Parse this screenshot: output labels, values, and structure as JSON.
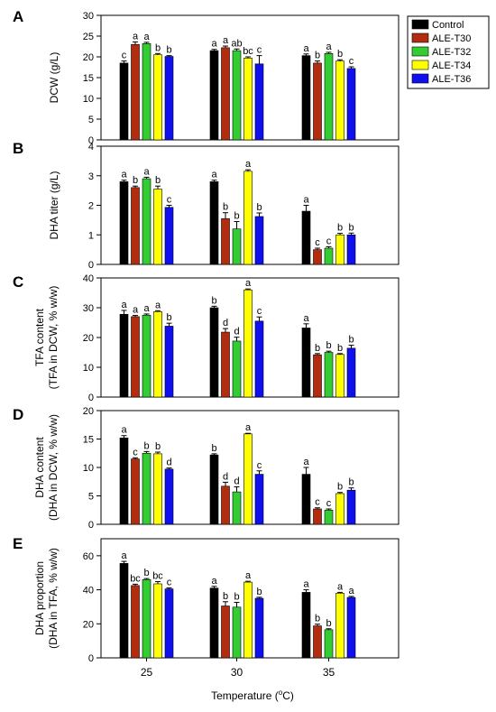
{
  "figure": {
    "xlabel": "Temperature (°C)",
    "xlabel_main": "Temperature (",
    "xlabel_deg": "o",
    "xlabel_unit": "C)",
    "categories": [
      "25",
      "30",
      "35"
    ]
  },
  "legend": {
    "entries": [
      {
        "name": "Control",
        "color": "#000000"
      },
      {
        "name": "ALE-T30",
        "color": "#b22d10"
      },
      {
        "name": "ALE-T32",
        "color": "#33cc33"
      },
      {
        "name": "ALE-T34",
        "color": "#ffff00"
      },
      {
        "name": "ALE-T36",
        "color": "#1010ee"
      }
    ]
  },
  "chart_data": [
    {
      "type": "bar",
      "panel": "A",
      "ylabel": [
        "DCW (g/L)"
      ],
      "ylim": [
        0,
        30
      ],
      "yticks": [
        0,
        5,
        10,
        15,
        20,
        25,
        30
      ],
      "categories": [
        "25",
        "30",
        "35"
      ],
      "series": [
        {
          "name": "Control",
          "values": [
            18.5,
            21.5,
            20.3
          ],
          "errors": [
            0.5,
            0.3,
            0.4
          ],
          "letters": [
            "c",
            "a",
            "a"
          ]
        },
        {
          "name": "ALE-T30",
          "values": [
            23.0,
            22.2,
            18.5
          ],
          "errors": [
            0.6,
            0.4,
            0.5
          ],
          "letters": [
            "a",
            "a",
            "b"
          ]
        },
        {
          "name": "ALE-T32",
          "values": [
            23.2,
            21.5,
            20.8
          ],
          "errors": [
            0.3,
            0.4,
            0.3
          ],
          "letters": [
            "a",
            "ab",
            "a"
          ]
        },
        {
          "name": "ALE-T34",
          "values": [
            20.5,
            19.7,
            19.0
          ],
          "errors": [
            0.3,
            0.3,
            0.3
          ],
          "letters": [
            "b",
            "bc",
            "b"
          ]
        },
        {
          "name": "ALE-T36",
          "values": [
            20.1,
            18.3,
            17.2
          ],
          "errors": [
            0.2,
            2.0,
            0.4
          ],
          "letters": [
            "b",
            "c",
            "c"
          ]
        }
      ]
    },
    {
      "type": "bar",
      "panel": "B",
      "ylabel": [
        "DHA titer (g/L)"
      ],
      "ylim": [
        0,
        4
      ],
      "yticks": [
        0,
        1,
        2,
        3,
        4
      ],
      "categories": [
        "25",
        "30",
        "35"
      ],
      "series": [
        {
          "name": "Control",
          "values": [
            2.8,
            2.8,
            1.8
          ],
          "errors": [
            0.05,
            0.05,
            0.2
          ],
          "letters": [
            "a",
            "a",
            "a"
          ]
        },
        {
          "name": "ALE-T30",
          "values": [
            2.6,
            1.55,
            0.5
          ],
          "errors": [
            0.05,
            0.2,
            0.05
          ],
          "letters": [
            "b",
            "b",
            "c"
          ]
        },
        {
          "name": "ALE-T32",
          "values": [
            2.9,
            1.2,
            0.55
          ],
          "errors": [
            0.05,
            0.25,
            0.05
          ],
          "letters": [
            "a",
            "b",
            "c"
          ]
        },
        {
          "name": "ALE-T34",
          "values": [
            2.55,
            3.15,
            1.0
          ],
          "errors": [
            0.1,
            0.05,
            0.05
          ],
          "letters": [
            "b",
            "a",
            "b"
          ]
        },
        {
          "name": "ALE-T36",
          "values": [
            1.93,
            1.62,
            1.0
          ],
          "errors": [
            0.07,
            0.12,
            0.06
          ],
          "letters": [
            "c",
            "b",
            "b"
          ]
        }
      ]
    },
    {
      "type": "bar",
      "panel": "C",
      "ylabel": [
        "TFA content",
        "(TFA in DCW, % w/w)"
      ],
      "ylim": [
        0,
        40
      ],
      "yticks": [
        0,
        10,
        20,
        30,
        40
      ],
      "categories": [
        "25",
        "30",
        "35"
      ],
      "series": [
        {
          "name": "Control",
          "values": [
            27.8,
            30.0,
            23.2
          ],
          "errors": [
            1.3,
            0.5,
            1.4
          ],
          "letters": [
            "a",
            "b",
            "a"
          ]
        },
        {
          "name": "ALE-T30",
          "values": [
            27.0,
            21.8,
            14.2
          ],
          "errors": [
            0.4,
            1.2,
            0.4
          ],
          "letters": [
            "a",
            "d",
            "b"
          ]
        },
        {
          "name": "ALE-T32",
          "values": [
            27.5,
            18.8,
            15.0
          ],
          "errors": [
            0.4,
            1.3,
            0.4
          ],
          "letters": [
            "a",
            "d",
            "b"
          ]
        },
        {
          "name": "ALE-T34",
          "values": [
            28.7,
            36.0,
            14.3
          ],
          "errors": [
            0.3,
            0.3,
            0.3
          ],
          "letters": [
            "a",
            "a",
            "b"
          ]
        },
        {
          "name": "ALE-T36",
          "values": [
            23.8,
            25.5,
            16.4
          ],
          "errors": [
            1.0,
            1.4,
            1.0
          ],
          "letters": [
            "b",
            "c",
            "b"
          ]
        }
      ]
    },
    {
      "type": "bar",
      "panel": "D",
      "ylabel": [
        "DHA content",
        "(DHA in DCW, % w/w)"
      ],
      "ylim": [
        0,
        20
      ],
      "yticks": [
        0,
        5,
        10,
        15,
        20
      ],
      "categories": [
        "25",
        "30",
        "35"
      ],
      "series": [
        {
          "name": "Control",
          "values": [
            15.2,
            12.2,
            8.8
          ],
          "errors": [
            0.4,
            0.2,
            1.2
          ],
          "letters": [
            "a",
            "b",
            "a"
          ]
        },
        {
          "name": "ALE-T30",
          "values": [
            11.5,
            6.7,
            2.7
          ],
          "errors": [
            0.2,
            0.7,
            0.2
          ],
          "letters": [
            "c",
            "d",
            "c"
          ]
        },
        {
          "name": "ALE-T32",
          "values": [
            12.5,
            5.7,
            2.5
          ],
          "errors": [
            0.3,
            0.9,
            0.2
          ],
          "letters": [
            "b",
            "d",
            "c"
          ]
        },
        {
          "name": "ALE-T34",
          "values": [
            12.4,
            15.9,
            5.4
          ],
          "errors": [
            0.3,
            0.1,
            0.2
          ],
          "letters": [
            "b",
            "a",
            "b"
          ]
        },
        {
          "name": "ALE-T36",
          "values": [
            9.7,
            8.8,
            6.0
          ],
          "errors": [
            0.2,
            0.6,
            0.4
          ],
          "letters": [
            "d",
            "c",
            "b"
          ]
        }
      ]
    },
    {
      "type": "bar",
      "panel": "E",
      "ylabel": [
        "DHA proportion",
        "(DHA in TFA, % w/w)"
      ],
      "ylim": [
        0,
        70
      ],
      "yticks": [
        0,
        20,
        40,
        60
      ],
      "categories": [
        "25",
        "30",
        "35"
      ],
      "series": [
        {
          "name": "Control",
          "values": [
            55.5,
            41.0,
            38.5
          ],
          "errors": [
            1.2,
            1.0,
            1.5
          ],
          "letters": [
            "a",
            "a",
            "a"
          ]
        },
        {
          "name": "ALE-T30",
          "values": [
            42.5,
            30.5,
            18.8
          ],
          "errors": [
            0.8,
            2.5,
            1.0
          ],
          "letters": [
            "bc",
            "b",
            "b"
          ]
        },
        {
          "name": "ALE-T32",
          "values": [
            46.0,
            29.8,
            16.5
          ],
          "errors": [
            0.6,
            2.8,
            0.6
          ],
          "letters": [
            "b",
            "b",
            "b"
          ]
        },
        {
          "name": "ALE-T34",
          "values": [
            43.5,
            44.5,
            38.0
          ],
          "errors": [
            1.3,
            0.5,
            0.5
          ],
          "letters": [
            "bc",
            "a",
            "a"
          ]
        },
        {
          "name": "ALE-T36",
          "values": [
            40.5,
            35.0,
            35.5
          ],
          "errors": [
            0.6,
            0.6,
            0.6
          ],
          "letters": [
            "c",
            "b",
            "a"
          ]
        }
      ]
    }
  ]
}
